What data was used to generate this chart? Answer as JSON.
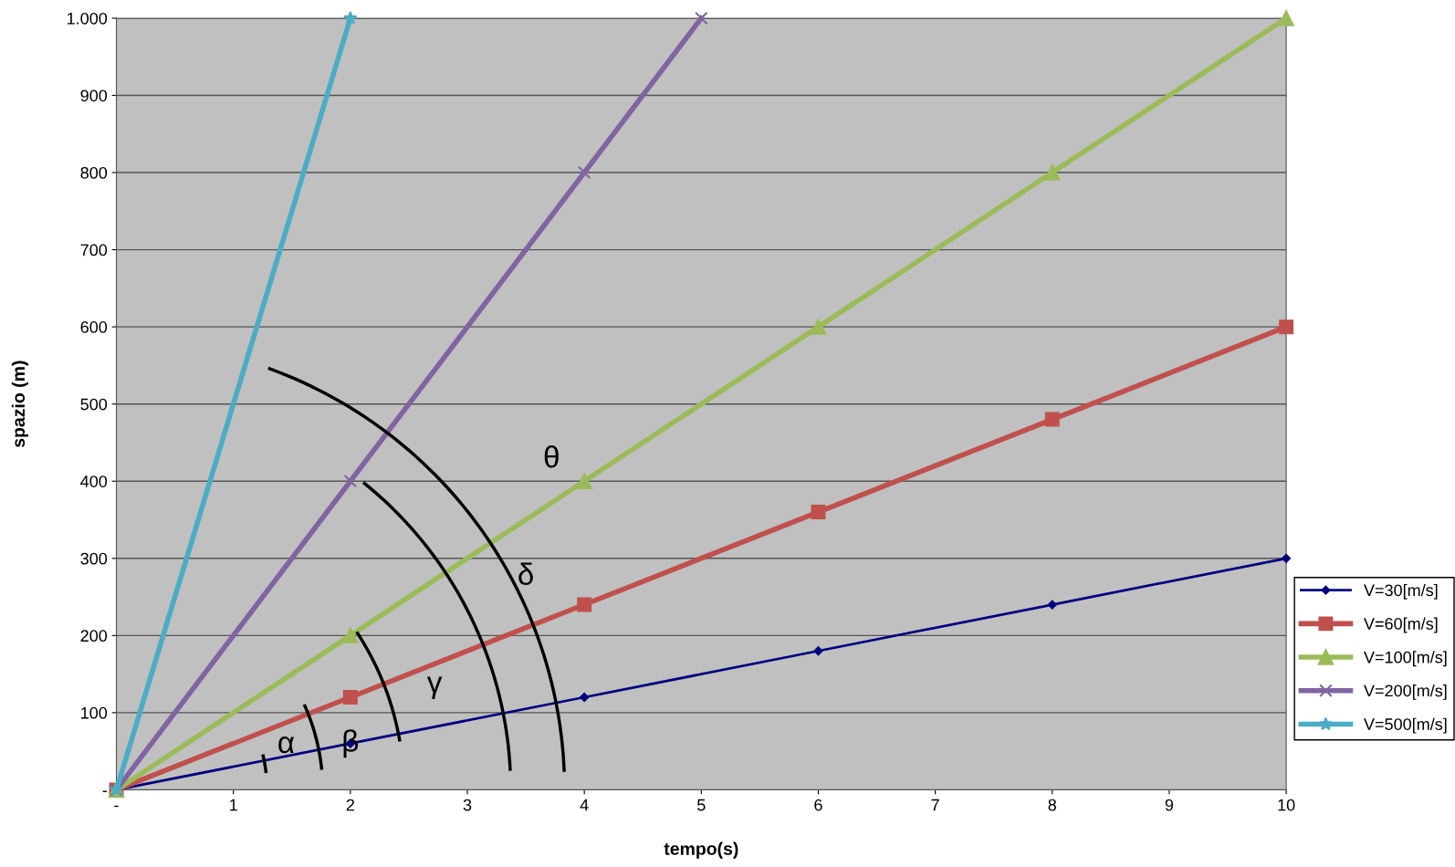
{
  "chart_data": {
    "type": "line",
    "xlabel": "tempo(s)",
    "ylabel": "spazio (m)",
    "x": [
      0,
      2,
      4,
      6,
      8,
      10
    ],
    "series": [
      {
        "name": "V=30[m/s]",
        "color": "#000080",
        "marker": "diamond",
        "values": [
          0,
          60,
          120,
          180,
          240,
          300
        ]
      },
      {
        "name": "V=60[m/s]",
        "color": "#c0504d",
        "marker": "square",
        "values": [
          0,
          120,
          240,
          360,
          480,
          600
        ]
      },
      {
        "name": "V=100[m/s]",
        "color": "#9bbb59",
        "marker": "triangle",
        "values": [
          0,
          200,
          400,
          600,
          800,
          1000
        ]
      },
      {
        "name": "V=200[m/s]",
        "color": "#8064a2",
        "marker": "cross",
        "x": [
          0,
          2,
          4,
          5
        ],
        "values": [
          0,
          400,
          800,
          1000
        ]
      },
      {
        "name": "V=500[m/s]",
        "color": "#4bacc6",
        "marker": "star",
        "x": [
          0,
          2
        ],
        "values": [
          0,
          1000
        ]
      }
    ],
    "xlim": [
      0,
      10
    ],
    "ylim": [
      0,
      1000
    ],
    "xticks": [
      {
        "value": 0,
        "label": "-"
      },
      1,
      2,
      3,
      4,
      5,
      6,
      7,
      8,
      9,
      10
    ],
    "yticks": [
      {
        "value": 0,
        "label": "-"
      },
      100,
      200,
      300,
      400,
      500,
      600,
      700,
      800,
      900,
      {
        "value": 1000,
        "label": "1.000"
      }
    ],
    "grid": "y",
    "legend": "right",
    "line_style": "solid",
    "annotations": [
      "α",
      "β",
      "γ",
      "δ",
      "θ"
    ]
  }
}
